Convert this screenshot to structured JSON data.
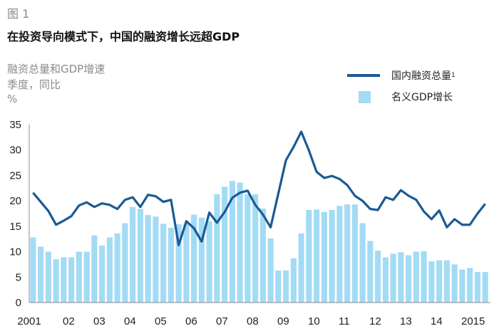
{
  "figure_label": "图 1",
  "title": "在投资导向模式下，中国的融资增长远超GDP",
  "subtitle_lines": [
    "融资总量和GDP增速",
    "季度，同比",
    "%"
  ],
  "colors": {
    "line": "#1b5a94",
    "bars": "#a3dbf5"
  },
  "chart_data": {
    "type": "bar+line",
    "frequency": "quarterly",
    "x_tick_labels": [
      "2001",
      "02",
      "03",
      "04",
      "05",
      "06",
      "07",
      "08",
      "09",
      "10",
      "11",
      "12",
      "13",
      "14",
      "2015"
    ],
    "ylim": [
      0,
      35
    ],
    "y_ticks": [
      0,
      5,
      10,
      15,
      20,
      25,
      30,
      35
    ],
    "grid": false,
    "legend_position": "top-right",
    "series": [
      {
        "name": "国内融资总量",
        "name_superscript": "1",
        "type": "line",
        "values": [
          21.6,
          19.8,
          18.0,
          15.3,
          16.1,
          17.0,
          19.1,
          19.7,
          18.8,
          19.5,
          19.2,
          18.4,
          20.2,
          20.7,
          18.8,
          21.2,
          20.9,
          19.8,
          20.2,
          11.3,
          16.0,
          14.6,
          12.0,
          17.7,
          15.7,
          17.8,
          20.6,
          21.6,
          22.0,
          19.2,
          17.3,
          14.8,
          21.4,
          28.0,
          30.6,
          33.6,
          29.9,
          25.7,
          24.5,
          24.9,
          24.3,
          23.1,
          21.0,
          20.0,
          18.4,
          18.2,
          20.7,
          20.2,
          22.1,
          21.0,
          20.2,
          17.9,
          16.4,
          18.1,
          14.8,
          16.4,
          15.3,
          15.3,
          17.5,
          19.4
        ]
      },
      {
        "name": "名义GDP增长",
        "type": "bar",
        "values": [
          12.8,
          11.0,
          10.0,
          8.5,
          8.9,
          8.9,
          10.0,
          10.0,
          13.2,
          11.2,
          12.8,
          13.6,
          15.6,
          18.8,
          18.4,
          17.2,
          16.9,
          15.5,
          14.7,
          15.4,
          15.5,
          17.3,
          16.7,
          16.0,
          21.3,
          22.8,
          23.9,
          23.6,
          21.3,
          21.3,
          18.5,
          12.6,
          6.3,
          6.3,
          8.7,
          13.6,
          18.2,
          18.3,
          17.8,
          18.2,
          19.0,
          19.3,
          19.3,
          15.6,
          12.1,
          10.2,
          8.9,
          9.6,
          9.9,
          9.3,
          10.0,
          10.1,
          8.1,
          8.3,
          8.3,
          7.5,
          6.5,
          6.8,
          6.0,
          6.0
        ]
      }
    ]
  }
}
